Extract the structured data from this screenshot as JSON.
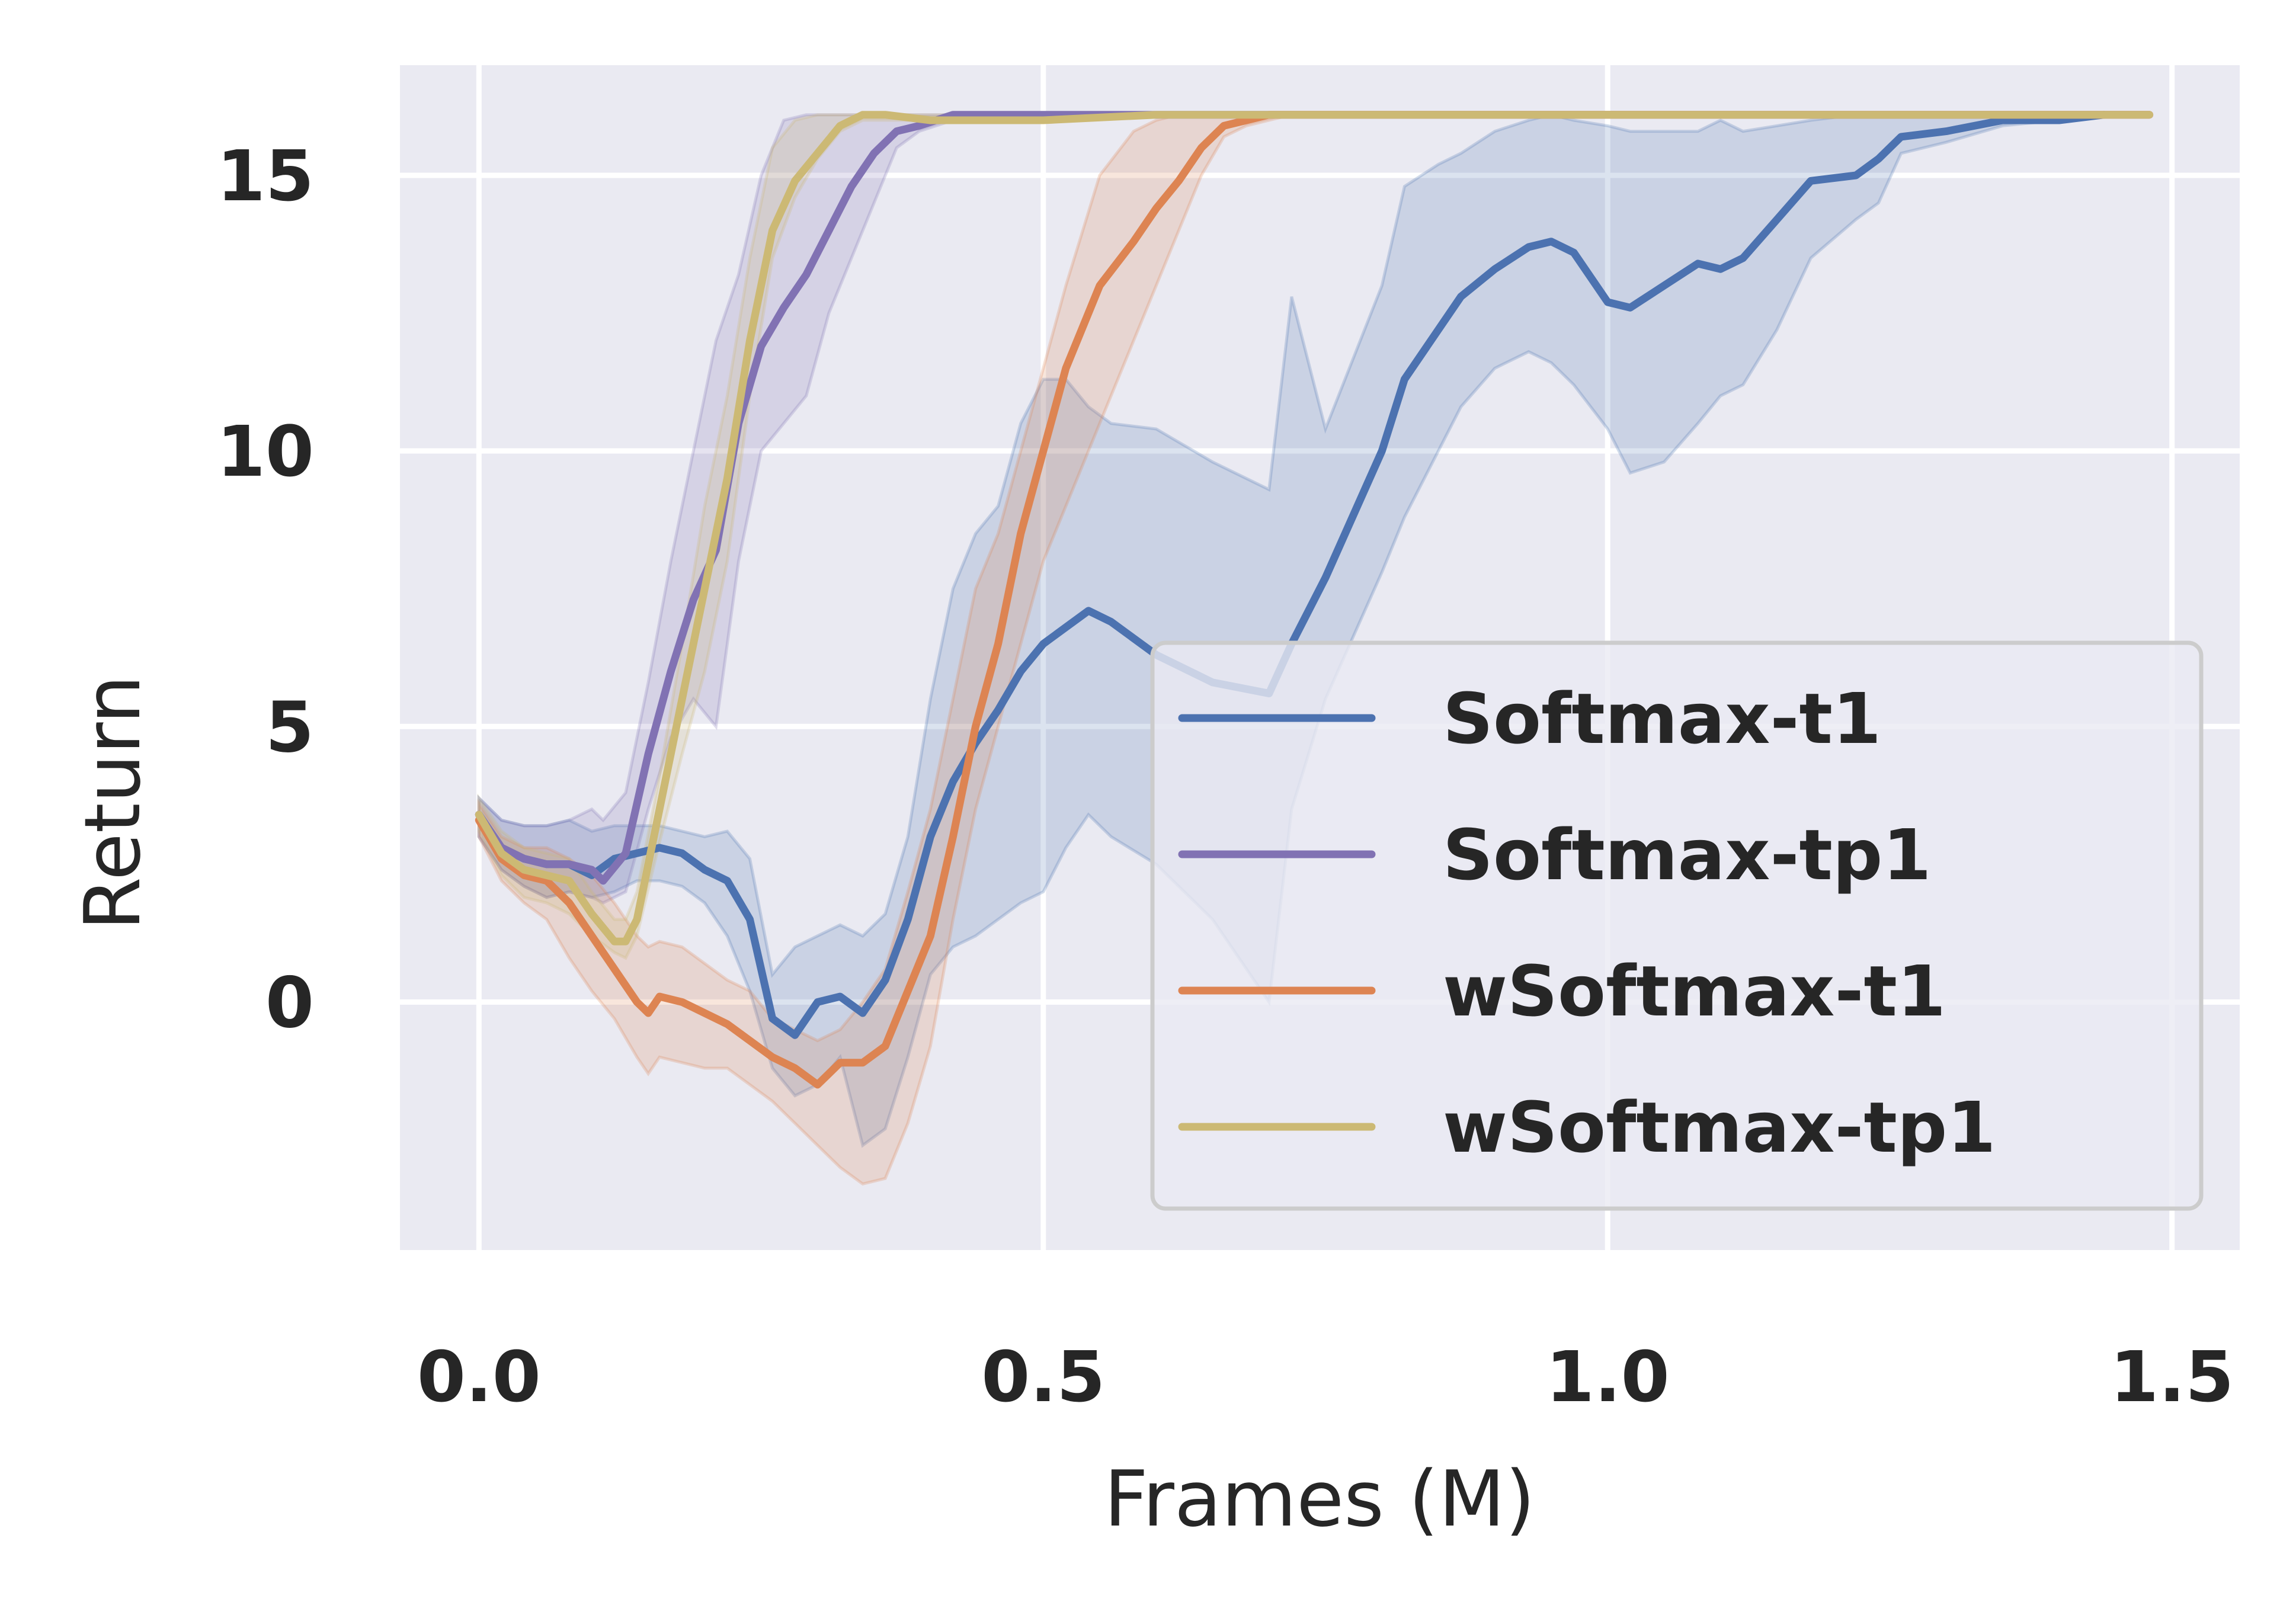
{
  "chart_data": {
    "type": "line",
    "xlabel": "Frames (M)",
    "ylabel": "Return",
    "xlim": [
      -0.07,
      1.56
    ],
    "ylim": [
      -4.5,
      17.0
    ],
    "xticks": [
      0.0,
      0.5,
      1.0,
      1.5
    ],
    "xtick_labels": [
      "0.0",
      "0.5",
      "1.0",
      "1.5"
    ],
    "yticks": [
      0,
      5,
      10,
      15
    ],
    "ytick_labels": [
      "0",
      "5",
      "10",
      "15"
    ],
    "grid": true,
    "legend_position": "lower-right",
    "series": [
      {
        "name": "Softmax-t1",
        "color": "#4c72b0",
        "x": [
          0.0,
          0.02,
          0.04,
          0.06,
          0.08,
          0.1,
          0.12,
          0.14,
          0.16,
          0.18,
          0.2,
          0.22,
          0.24,
          0.26,
          0.28,
          0.3,
          0.32,
          0.34,
          0.36,
          0.38,
          0.4,
          0.42,
          0.44,
          0.46,
          0.48,
          0.5,
          0.52,
          0.54,
          0.56,
          0.6,
          0.65,
          0.7,
          0.72,
          0.75,
          0.8,
          0.82,
          0.85,
          0.87,
          0.9,
          0.93,
          0.95,
          0.97,
          1.0,
          1.02,
          1.05,
          1.08,
          1.1,
          1.12,
          1.15,
          1.18,
          1.22,
          1.24,
          1.26,
          1.3,
          1.35,
          1.4,
          1.44
        ],
        "y": [
          3.4,
          2.8,
          2.6,
          2.5,
          2.5,
          2.3,
          2.6,
          2.7,
          2.8,
          2.7,
          2.4,
          2.2,
          1.5,
          -0.3,
          -0.6,
          0.0,
          0.1,
          -0.2,
          0.4,
          1.5,
          3.0,
          4.0,
          4.7,
          5.3,
          6.0,
          6.5,
          6.8,
          7.1,
          6.9,
          6.3,
          5.8,
          5.6,
          6.5,
          7.7,
          10.0,
          11.3,
          12.2,
          12.8,
          13.3,
          13.7,
          13.8,
          13.6,
          12.7,
          12.6,
          13.0,
          13.4,
          13.3,
          13.5,
          14.2,
          14.9,
          15.0,
          15.3,
          15.7,
          15.8,
          16.0,
          16.0,
          16.1
        ],
        "lower": [
          3.0,
          2.4,
          2.1,
          1.9,
          2.0,
          1.9,
          2.0,
          2.2,
          2.2,
          2.1,
          1.8,
          1.2,
          0.2,
          -1.2,
          -1.7,
          -1.5,
          -1.0,
          -2.6,
          -2.3,
          -1.0,
          0.5,
          1.0,
          1.2,
          1.5,
          1.8,
          2.0,
          2.8,
          3.4,
          3.0,
          2.5,
          1.5,
          0.0,
          3.5,
          5.5,
          7.8,
          8.8,
          10.0,
          10.8,
          11.5,
          11.8,
          11.6,
          11.2,
          10.4,
          9.6,
          9.8,
          10.5,
          11.0,
          11.2,
          12.2,
          13.5,
          14.2,
          14.5,
          15.4,
          15.6,
          15.9,
          16.0,
          16.1
        ],
        "upper": [
          3.7,
          3.3,
          3.2,
          3.2,
          3.3,
          3.1,
          3.2,
          3.2,
          3.2,
          3.1,
          3.0,
          3.1,
          2.6,
          0.5,
          1.0,
          1.2,
          1.4,
          1.2,
          1.6,
          3.0,
          5.5,
          7.5,
          8.5,
          9.0,
          10.5,
          11.3,
          11.3,
          10.8,
          10.5,
          10.4,
          9.8,
          9.3,
          12.8,
          10.4,
          13.0,
          14.8,
          15.2,
          15.4,
          15.8,
          16.0,
          16.1,
          16.0,
          15.9,
          15.8,
          15.8,
          15.8,
          16.0,
          15.8,
          15.9,
          16.0,
          16.1,
          16.1,
          16.1,
          16.1,
          16.1,
          16.1,
          16.1
        ]
      },
      {
        "name": "Softmax-tp1",
        "color": "#8172b3",
        "x": [
          0.0,
          0.02,
          0.04,
          0.06,
          0.08,
          0.1,
          0.11,
          0.13,
          0.15,
          0.17,
          0.19,
          0.21,
          0.23,
          0.25,
          0.27,
          0.29,
          0.31,
          0.33,
          0.35,
          0.37,
          0.39,
          0.42,
          0.45,
          0.5,
          0.55,
          0.6,
          0.7,
          0.8,
          1.0,
          1.2,
          1.48
        ],
        "y": [
          3.4,
          2.8,
          2.6,
          2.5,
          2.5,
          2.4,
          2.2,
          2.7,
          4.5,
          6.0,
          7.3,
          8.2,
          10.5,
          11.9,
          12.6,
          13.2,
          14.0,
          14.8,
          15.4,
          15.8,
          15.9,
          16.1,
          16.1,
          16.1,
          16.1,
          16.1,
          16.1,
          16.1,
          16.1,
          16.1,
          16.1
        ],
        "lower": [
          3.0,
          2.4,
          2.1,
          1.9,
          2.0,
          1.9,
          1.8,
          2.0,
          3.5,
          4.8,
          5.5,
          5.0,
          8.0,
          10.0,
          10.5,
          11.0,
          12.5,
          13.5,
          14.5,
          15.5,
          15.8,
          16.0,
          16.1,
          16.1,
          16.1,
          16.1,
          16.1,
          16.1,
          16.1,
          16.1,
          16.1
        ],
        "upper": [
          3.7,
          3.3,
          3.2,
          3.2,
          3.3,
          3.5,
          3.3,
          3.8,
          5.8,
          8.0,
          10.0,
          12.0,
          13.2,
          15.0,
          16.0,
          16.1,
          16.1,
          16.1,
          16.1,
          16.1,
          16.1,
          16.1,
          16.1,
          16.1,
          16.1,
          16.1,
          16.1,
          16.1,
          16.1,
          16.1,
          16.1
        ]
      },
      {
        "name": "wSoftmax-t1",
        "color": "#dd8452",
        "x": [
          0.0,
          0.02,
          0.04,
          0.06,
          0.08,
          0.1,
          0.12,
          0.14,
          0.15,
          0.16,
          0.18,
          0.2,
          0.22,
          0.24,
          0.26,
          0.28,
          0.3,
          0.32,
          0.34,
          0.36,
          0.38,
          0.4,
          0.42,
          0.44,
          0.46,
          0.48,
          0.5,
          0.52,
          0.55,
          0.58,
          0.6,
          0.62,
          0.64,
          0.66,
          0.68,
          0.7,
          0.72,
          0.8,
          1.0,
          1.2,
          1.48
        ],
        "y": [
          3.3,
          2.6,
          2.3,
          2.2,
          1.8,
          1.2,
          0.6,
          0.0,
          -0.2,
          0.1,
          0.0,
          -0.2,
          -0.4,
          -0.7,
          -1.0,
          -1.2,
          -1.5,
          -1.1,
          -1.1,
          -0.8,
          0.2,
          1.2,
          3.0,
          5.0,
          6.5,
          8.5,
          10.0,
          11.5,
          13.0,
          13.8,
          14.4,
          14.9,
          15.5,
          15.9,
          16.0,
          16.1,
          16.1,
          16.1,
          16.1,
          16.1,
          16.1
        ],
        "lower": [
          3.0,
          2.2,
          1.8,
          1.5,
          0.8,
          0.2,
          -0.3,
          -1.0,
          -1.3,
          -1.0,
          -1.1,
          -1.2,
          -1.2,
          -1.5,
          -1.8,
          -2.2,
          -2.6,
          -3.0,
          -3.3,
          -3.2,
          -2.2,
          -0.8,
          1.5,
          3.5,
          5.0,
          6.5,
          8.0,
          9.0,
          10.5,
          12.0,
          13.0,
          14.0,
          15.0,
          15.7,
          15.9,
          16.0,
          16.1,
          16.1,
          16.1,
          16.1,
          16.1
        ],
        "upper": [
          3.6,
          3.0,
          2.8,
          2.8,
          2.6,
          2.3,
          1.8,
          1.2,
          1.0,
          1.1,
          1.0,
          0.7,
          0.4,
          0.2,
          -0.3,
          -0.5,
          -0.7,
          -0.5,
          0.0,
          0.6,
          2.0,
          3.5,
          5.5,
          7.5,
          8.5,
          10.0,
          11.5,
          13.0,
          15.0,
          15.8,
          16.0,
          16.1,
          16.1,
          16.1,
          16.1,
          16.1,
          16.1,
          16.1,
          16.1,
          16.1,
          16.1
        ]
      },
      {
        "name": "wSoftmax-tp1",
        "color": "#ccb974",
        "x": [
          0.0,
          0.02,
          0.04,
          0.06,
          0.08,
          0.1,
          0.12,
          0.13,
          0.14,
          0.16,
          0.18,
          0.2,
          0.22,
          0.24,
          0.26,
          0.28,
          0.3,
          0.32,
          0.34,
          0.36,
          0.4,
          0.5,
          0.6,
          0.8,
          1.0,
          1.2,
          1.48
        ],
        "y": [
          3.4,
          2.7,
          2.4,
          2.3,
          2.2,
          1.6,
          1.1,
          1.1,
          1.5,
          3.5,
          5.5,
          7.5,
          9.5,
          12.0,
          14.0,
          14.9,
          15.4,
          15.9,
          16.1,
          16.1,
          16.0,
          16.0,
          16.1,
          16.1,
          16.1,
          16.1,
          16.1
        ],
        "lower": [
          3.1,
          2.3,
          1.9,
          1.8,
          1.6,
          1.2,
          0.9,
          0.8,
          1.2,
          2.9,
          4.5,
          6.0,
          8.0,
          11.0,
          13.5,
          14.6,
          15.3,
          15.8,
          16.0,
          16.0,
          16.0,
          16.0,
          16.1,
          16.1,
          16.1,
          16.1,
          16.1
        ],
        "upper": [
          3.7,
          3.1,
          2.8,
          2.7,
          2.6,
          2.0,
          1.5,
          1.5,
          2.0,
          4.1,
          6.5,
          9.0,
          11.0,
          13.5,
          15.5,
          16.0,
          16.1,
          16.1,
          16.1,
          16.1,
          16.1,
          16.1,
          16.1,
          16.1,
          16.1,
          16.1,
          16.1
        ]
      }
    ]
  }
}
